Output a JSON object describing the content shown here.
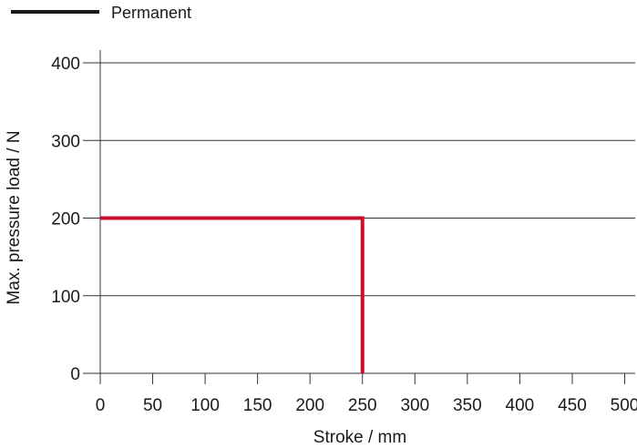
{
  "chart_data": {
    "type": "line",
    "legend": [
      {
        "label": "Permanent",
        "color": "#1a1a1a"
      }
    ],
    "xlabel": "Stroke / mm",
    "ylabel": "Max. pressure load / N",
    "xlim": [
      0,
      510
    ],
    "ylim": [
      0,
      400
    ],
    "x_ticks": [
      0,
      50,
      100,
      150,
      200,
      250,
      300,
      350,
      400,
      450,
      500
    ],
    "y_ticks": [
      0,
      100,
      200,
      300,
      400
    ],
    "grid": "horizontal",
    "series": [
      {
        "color": "#c8102e",
        "x": [
          0,
          250,
          250
        ],
        "y": [
          200,
          200,
          0
        ]
      }
    ]
  }
}
